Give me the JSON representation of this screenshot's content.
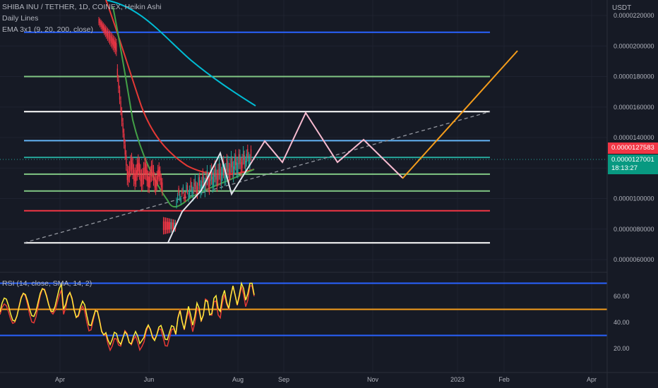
{
  "legend": {
    "main": "SHIBA INU / TETHER, 1D, COINEX, Heikin Ashi",
    "daily_lines": "Daily Lines",
    "ema": "EMA 3x1 (9, 20, 200, close)",
    "rsi": "RSI (14, close, SMA, 14, 2)"
  },
  "currency": "USDT",
  "price_tags": {
    "current_red": "0.0000127583",
    "current_green": "0.0000127001",
    "countdown": "18:13:27"
  },
  "colors": {
    "background": "#161a25",
    "blue_level": "#2962ff",
    "green_level": "#81c784",
    "white_level": "#ffffff",
    "lightblue_level": "#64b5f6",
    "teal_level": "#26a69a",
    "red_level": "#f23645",
    "projection": "#f8bbd0",
    "orange_projection": "#f59d1b",
    "ema9": "#43a047",
    "ema20": "#e53935",
    "ema200": "#00bcd4",
    "rsi_line": "#ffeb3b",
    "rsi_sma": "#e53935",
    "rsi_orange": "#f59d1b"
  },
  "chart_data": [
    {
      "type": "line",
      "title": "SHIBA INU / TETHER, 1D, COINEX, Heikin Ashi",
      "y_axis": {
        "ticks": [
          "0.0000220000",
          "0.0000200000",
          "0.0000180000",
          "0.0000160000",
          "0.0000140000",
          "0.0000120000",
          "0.0000100000",
          "0.0000080000",
          "0.0000060000"
        ],
        "tick_values": [
          2.2e-05,
          2e-05,
          1.8e-05,
          1.6e-05,
          1.4e-05,
          1.2e-05,
          1e-05,
          8e-06,
          6e-06
        ]
      },
      "x_axis": {
        "ticks": [
          "Apr",
          "Jun",
          "Aug",
          "Sep",
          "Nov",
          "2023",
          "Feb",
          "Apr"
        ]
      },
      "horizontal_levels": [
        {
          "value": 2.09e-05,
          "color": "#2962ff"
        },
        {
          "value": 1.8e-05,
          "color": "#81c784"
        },
        {
          "value": 1.57e-05,
          "color": "#ffffff"
        },
        {
          "value": 1.38e-05,
          "color": "#64b5f6"
        },
        {
          "value": 1.27e-05,
          "color": "#26a69a"
        },
        {
          "value": 1.16e-05,
          "color": "#81c784"
        },
        {
          "value": 1.05e-05,
          "color": "#81c784"
        },
        {
          "value": 9.2e-06,
          "color": "#f23645"
        },
        {
          "value": 7.1e-06,
          "color": "#ffffff"
        }
      ]
    },
    {
      "type": "line",
      "title": "RSI (14, close, SMA, 14, 2)",
      "y_axis": {
        "ticks": [
          "60.00",
          "40.00",
          "20.00"
        ],
        "tick_values": [
          60,
          40,
          20
        ]
      },
      "levels": [
        70,
        50,
        30
      ]
    }
  ]
}
